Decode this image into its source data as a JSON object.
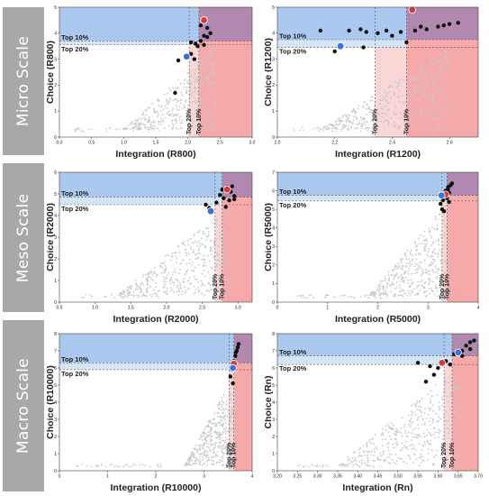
{
  "figure": {
    "scale_labels": [
      "Micro Scale",
      "Meso Scale",
      "Macro Scale"
    ],
    "colors": {
      "band": "#a8a8a8",
      "blue_region": "#9cc0ec",
      "blue_region_light": "#d2e2f5",
      "red_region": "#f39a9a",
      "red_region_light": "#f9d3d3",
      "overlap": "#a97ba6",
      "points": "#c8c8c8",
      "highlight": "#111111",
      "marker_red": "#d83a3a",
      "marker_blue": "#3a72d8"
    },
    "region_labels": {
      "top10": "Top 10%",
      "top20": "Top 20%"
    }
  },
  "chart_data": [
    {
      "type": "scatter",
      "xlabel": "Integration (R800)",
      "ylabel": "Choice (R800)",
      "xlim": [
        0,
        3.0
      ],
      "ylim": [
        0,
        5
      ],
      "xticks": [
        "0.0",
        "0.5",
        "1.0",
        "1.5",
        "2.0",
        "2.5",
        "3.0"
      ],
      "xtick_values": [
        0,
        0.5,
        1,
        1.5,
        2,
        2.5,
        3
      ],
      "yticks": [
        "0",
        "1",
        "2",
        "3",
        "4",
        "5"
      ],
      "ytick_values": [
        0,
        1,
        2,
        3,
        4,
        5
      ],
      "x_top10": 2.17,
      "x_top20": 2.02,
      "y_top10": 3.7,
      "y_top20": 3.55,
      "cloud": {
        "x_range": [
          1.0,
          2.45
        ],
        "y_base": 0.3
      },
      "highlight_points": [
        [
          2.05,
          3.2
        ],
        [
          2.1,
          3.0
        ],
        [
          1.85,
          2.95
        ],
        [
          2.12,
          3.6
        ],
        [
          2.2,
          3.7
        ],
        [
          2.25,
          3.9
        ],
        [
          2.3,
          4.2
        ],
        [
          2.35,
          4.0
        ],
        [
          2.2,
          4.3
        ],
        [
          2.15,
          3.5
        ],
        [
          1.8,
          1.7
        ],
        [
          2.05,
          3.65
        ],
        [
          2.25,
          3.55
        ],
        [
          2.3,
          3.85
        ]
      ],
      "marker_red": [
        2.25,
        4.5
      ],
      "marker_blue": [
        1.98,
        3.1
      ]
    },
    {
      "type": "scatter",
      "xlabel": "Integration (R1200)",
      "ylabel": "Choice (R1200)",
      "xlim": [
        2.0,
        2.7
      ],
      "ylim": [
        0,
        5
      ],
      "xticks": [
        "2.0",
        "2.2",
        "2.4",
        "2.6"
      ],
      "xtick_values": [
        2.0,
        2.2,
        2.4,
        2.6
      ],
      "yticks": [
        "0",
        "1",
        "2",
        "3",
        "4",
        "5"
      ],
      "ytick_values": [
        0,
        1,
        2,
        3,
        4,
        5
      ],
      "x_top10": 2.45,
      "x_top20": 2.34,
      "y_top10": 3.75,
      "y_top20": 3.45,
      "cloud": {
        "x_range": [
          2.15,
          2.6
        ],
        "y_base": 0.3
      },
      "highlight_points": [
        [
          2.15,
          4.1
        ],
        [
          2.25,
          4.1
        ],
        [
          2.29,
          4.15
        ],
        [
          2.31,
          4.05
        ],
        [
          2.35,
          4.0
        ],
        [
          2.38,
          4.1
        ],
        [
          2.43,
          4.05
        ],
        [
          2.48,
          4.1
        ],
        [
          2.52,
          4.15
        ],
        [
          2.56,
          4.25
        ],
        [
          2.58,
          4.3
        ],
        [
          2.6,
          4.35
        ],
        [
          2.63,
          4.4
        ],
        [
          2.5,
          4.25
        ],
        [
          2.3,
          3.45
        ],
        [
          2.45,
          3.65
        ],
        [
          2.4,
          3.9
        ],
        [
          2.2,
          3.3
        ]
      ],
      "marker_red": [
        2.47,
        4.9
      ],
      "marker_blue": [
        2.22,
        3.5
      ]
    },
    {
      "type": "scatter",
      "xlabel": "Integration (R2000)",
      "ylabel": "Choice (R2000)",
      "xlim": [
        0.5,
        3.2
      ],
      "ylim": [
        0,
        6
      ],
      "xticks": [
        "0.5",
        "1.0",
        "1.5",
        "2.0",
        "2.5",
        "3.0"
      ],
      "xtick_values": [
        0.5,
        1,
        1.5,
        2,
        2.5,
        3
      ],
      "yticks": [
        "0",
        "1",
        "2",
        "3",
        "4",
        "5",
        "6"
      ],
      "ytick_values": [
        0,
        1,
        2,
        3,
        4,
        5,
        6
      ],
      "x_top10": 2.78,
      "x_top20": 2.68,
      "y_top10": 4.85,
      "y_top20": 4.5,
      "cloud": {
        "x_range": [
          1.3,
          2.9
        ],
        "y_base": 0.3
      },
      "highlight_points": [
        [
          2.85,
          5.3
        ],
        [
          2.9,
          5.1
        ],
        [
          2.95,
          4.9
        ],
        [
          2.75,
          4.95
        ],
        [
          2.8,
          4.8
        ],
        [
          2.7,
          4.6
        ],
        [
          2.88,
          4.7
        ],
        [
          2.95,
          4.75
        ],
        [
          2.6,
          4.35
        ],
        [
          2.55,
          4.5
        ],
        [
          2.78,
          5.2
        ],
        [
          2.92,
          5.35
        ],
        [
          2.83,
          4.4
        ]
      ],
      "marker_red": [
        2.85,
        5.2
      ],
      "marker_blue": [
        2.62,
        4.2
      ]
    },
    {
      "type": "scatter",
      "xlabel": "Integration (R5000)",
      "ylabel": "Choice (R5000)",
      "xlim": [
        0,
        4
      ],
      "ylim": [
        0,
        7
      ],
      "xticks": [
        "0",
        "1",
        "2",
        "3",
        "4"
      ],
      "xtick_values": [
        0,
        1,
        2,
        3,
        4
      ],
      "yticks": [
        "0",
        "1",
        "2",
        "3",
        "4",
        "5",
        "6",
        "7"
      ],
      "ytick_values": [
        0,
        1,
        2,
        3,
        4,
        5,
        6,
        7
      ],
      "x_top10": 3.38,
      "x_top20": 3.28,
      "y_top10": 5.75,
      "y_top20": 5.45,
      "cloud": {
        "x_range": [
          1.8,
          3.45
        ],
        "y_base": 0.3
      },
      "highlight_points": [
        [
          3.35,
          6.0
        ],
        [
          3.4,
          6.2
        ],
        [
          3.45,
          6.3
        ],
        [
          3.42,
          5.9
        ],
        [
          3.38,
          5.6
        ],
        [
          3.3,
          5.5
        ],
        [
          3.28,
          5.0
        ],
        [
          3.32,
          4.9
        ],
        [
          3.4,
          6.1
        ],
        [
          3.48,
          6.4
        ],
        [
          3.36,
          5.7
        ],
        [
          3.25,
          5.3
        ],
        [
          3.42,
          5.4
        ]
      ],
      "marker_red": [
        3.35,
        5.8
      ],
      "marker_blue": [
        3.27,
        5.75
      ]
    },
    {
      "type": "scatter",
      "xlabel": "Integration (R10000)",
      "ylabel": "Choice (R10000)",
      "xlim": [
        0,
        4
      ],
      "ylim": [
        0,
        8
      ],
      "xticks": [
        "0",
        "1",
        "2",
        "3",
        "4"
      ],
      "xtick_values": [
        0,
        1,
        2,
        3,
        4
      ],
      "yticks": [
        "0",
        "1",
        "2",
        "3",
        "4",
        "5",
        "6",
        "7",
        "8"
      ],
      "ytick_values": [
        0,
        1,
        2,
        3,
        4,
        5,
        6,
        7,
        8
      ],
      "x_top10": 3.62,
      "x_top20": 3.52,
      "y_top10": 6.3,
      "y_top20": 5.9,
      "cloud": {
        "x_range": [
          2.6,
          3.7
        ],
        "y_base": 0.3
      },
      "highlight_points": [
        [
          3.62,
          6.4
        ],
        [
          3.65,
          6.7
        ],
        [
          3.68,
          7.0
        ],
        [
          3.7,
          7.2
        ],
        [
          3.6,
          6.2
        ],
        [
          3.58,
          5.9
        ],
        [
          3.55,
          5.5
        ],
        [
          3.6,
          5.1
        ],
        [
          3.66,
          6.9
        ],
        [
          3.72,
          7.4
        ],
        [
          3.64,
          6.1
        ]
      ],
      "marker_red": [
        3.62,
        6.25
      ],
      "marker_blue": [
        3.6,
        6.0
      ]
    },
    {
      "type": "scatter",
      "xlabel": "Integration (Rn)",
      "ylabel": "Choice (Rn)",
      "xlim": [
        3.2,
        3.7
      ],
      "ylim": [
        0,
        8
      ],
      "xticks": [
        "3.20",
        "3.25",
        "3.30",
        "3.35",
        "3.40",
        "3.45",
        "3.50",
        "3.55",
        "3.60",
        "3.65",
        "3.70"
      ],
      "xtick_values": [
        3.2,
        3.25,
        3.3,
        3.35,
        3.4,
        3.45,
        3.5,
        3.55,
        3.6,
        3.65,
        3.7
      ],
      "yticks": [
        "0",
        "1",
        "2",
        "3",
        "4",
        "5",
        "6",
        "7",
        "8"
      ],
      "ytick_values": [
        0,
        1,
        2,
        3,
        4,
        5,
        6,
        7,
        8
      ],
      "x_top10": 3.635,
      "x_top20": 3.615,
      "y_top10": 6.7,
      "y_top20": 6.2,
      "cloud": {
        "x_range": [
          3.35,
          3.66
        ],
        "y_base": 0.3
      },
      "highlight_points": [
        [
          3.55,
          6.3
        ],
        [
          3.58,
          6.1
        ],
        [
          3.6,
          6.0
        ],
        [
          3.62,
          6.4
        ],
        [
          3.64,
          6.8
        ],
        [
          3.66,
          7.0
        ],
        [
          3.67,
          7.3
        ],
        [
          3.68,
          7.5
        ],
        [
          3.69,
          7.6
        ],
        [
          3.57,
          5.2
        ],
        [
          3.59,
          5.6
        ],
        [
          3.63,
          6.2
        ],
        [
          3.66,
          6.7
        ],
        [
          3.68,
          7.1
        ]
      ],
      "marker_red": [
        3.61,
        6.3
      ],
      "marker_blue": [
        3.65,
        6.9
      ]
    }
  ]
}
